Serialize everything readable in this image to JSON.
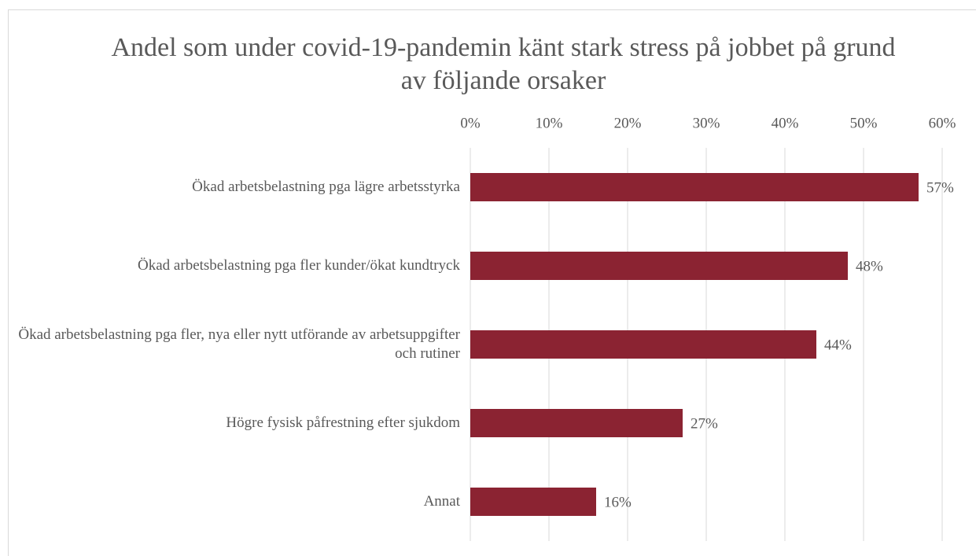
{
  "chart_data": {
    "type": "bar",
    "orientation": "horizontal",
    "title": "Andel som under covid-19-pandemin känt stark stress på jobbet på grund av följande orsaker",
    "categories": [
      "Ökad arbetsbelastning pga lägre arbetsstyrka",
      "Ökad arbetsbelastning pga fler kunder/ökat kundtryck",
      "Ökad arbetsbelastning pga fler, nya eller nytt utförande av arbetsuppgifter och rutiner",
      "Högre fysisk påfrestning efter sjukdom",
      "Annat"
    ],
    "values": [
      57,
      48,
      44,
      27,
      16
    ],
    "value_labels": [
      "57%",
      "48%",
      "44%",
      "27%",
      "16%"
    ],
    "color": "#8b2332",
    "xlim": [
      0,
      60
    ],
    "xticks": [
      {
        "value": 0,
        "label": "0%"
      },
      {
        "value": 10,
        "label": "10%"
      },
      {
        "value": 20,
        "label": "20%"
      },
      {
        "value": 30,
        "label": "30%"
      },
      {
        "value": 40,
        "label": "40%"
      },
      {
        "value": 50,
        "label": "50%"
      },
      {
        "value": 60,
        "label": "60%"
      }
    ],
    "grid": true
  }
}
